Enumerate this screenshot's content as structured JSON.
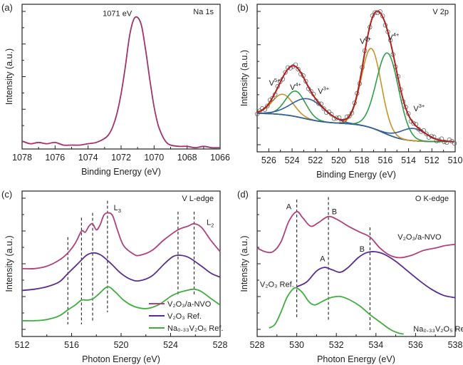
{
  "chart_data": [
    {
      "id": "a",
      "type": "line",
      "panel_label": "(a)",
      "title": "Na 1s",
      "xlabel": "Binding Energy (eV)",
      "ylabel": "Intensity (a.u.)",
      "xlim": [
        1078,
        1066
      ],
      "ylim": [
        0,
        1.1
      ],
      "xticks": [
        1078,
        1076,
        1074,
        1072,
        1070,
        1068,
        1066
      ],
      "annotations": [
        {
          "text": "1071 eV",
          "x": 1071,
          "y": 1.0
        }
      ],
      "series": [
        {
          "name": "Na 1s",
          "color": "#a0336e",
          "x": [
            1078,
            1077.5,
            1077,
            1076.5,
            1076,
            1075.5,
            1075,
            1074.5,
            1074,
            1073.5,
            1073,
            1072.75,
            1072.5,
            1072.25,
            1072,
            1071.75,
            1071.5,
            1071.25,
            1071,
            1070.75,
            1070.5,
            1070.25,
            1070,
            1069.75,
            1069.5,
            1069.25,
            1069,
            1068.5,
            1068,
            1067.5,
            1067,
            1066.5,
            1066
          ],
          "y": [
            0.06,
            0.04,
            0.05,
            0.04,
            0.05,
            0.03,
            0.03,
            0.03,
            0.04,
            0.05,
            0.08,
            0.11,
            0.17,
            0.27,
            0.42,
            0.62,
            0.85,
            0.98,
            1.0,
            0.93,
            0.74,
            0.52,
            0.32,
            0.18,
            0.1,
            0.05,
            0.03,
            0.02,
            0.02,
            0.01,
            0.02,
            0.01,
            0.01
          ]
        }
      ]
    },
    {
      "id": "b",
      "type": "line",
      "panel_label": "(b)",
      "title": "V 2p",
      "xlabel": "Binding Energy (eV)",
      "ylabel": "Intensity (a.u.)",
      "xlim": [
        527,
        510
      ],
      "ylim": [
        -0.1,
        1.35
      ],
      "xticks": [
        526,
        524,
        522,
        520,
        518,
        516,
        514,
        512,
        510
      ],
      "peak_labels": [
        {
          "text": "V",
          "sup": "5+",
          "x": 525.5,
          "y": 0.55,
          "color": "#c8922a"
        },
        {
          "text": "V",
          "sup": "4+",
          "x": 523.7,
          "y": 0.51,
          "color": "#2e9e4a"
        },
        {
          "text": "V",
          "sup": "3+",
          "x": 521.3,
          "y": 0.47,
          "color": "#2f5fa0"
        },
        {
          "text": "V",
          "sup": "5+",
          "x": 517.7,
          "y": 0.96,
          "color": "#c8922a"
        },
        {
          "text": "V",
          "sup": "4+",
          "x": 515.3,
          "y": 1.0,
          "color": "#2e9e4a"
        },
        {
          "text": "V",
          "sup": "3+",
          "x": 513.1,
          "y": 0.3,
          "color": "#2f5fa0"
        }
      ],
      "components": {
        "background": {
          "color": "#c8922a"
        },
        "peaks": [
          {
            "name": "V5+ 2p1/2",
            "center": 524.8,
            "height": 0.2,
            "width": 0.9,
            "color": "#c8922a"
          },
          {
            "name": "V4+ 2p1/2",
            "center": 523.7,
            "height": 0.25,
            "width": 0.85,
            "color": "#2e9e4a"
          },
          {
            "name": "V3+ 2p1/2",
            "center": 522.6,
            "height": 0.2,
            "width": 1.4,
            "color": "#2f5fa0"
          },
          {
            "name": "V5+ 2p3/2",
            "center": 517.2,
            "height": 0.78,
            "width": 0.85,
            "color": "#c8922a"
          },
          {
            "name": "V4+ 2p3/2",
            "center": 515.8,
            "height": 0.8,
            "width": 0.95,
            "color": "#2e9e4a"
          },
          {
            "name": "V3+ 2p3/2",
            "center": 513.6,
            "height": 0.12,
            "width": 1.1,
            "color": "#2f5fa0"
          }
        ],
        "envelope": {
          "color": "#b01e1e"
        },
        "data_points": {
          "color": "#555555"
        }
      }
    },
    {
      "id": "c",
      "type": "line",
      "panel_label": "(c)",
      "title": "V L-edge",
      "xlabel": "Photon Energy (eV)",
      "ylabel": "Intensity (a.u.)",
      "xlim": [
        512,
        528
      ],
      "ylim": [
        0,
        1.2
      ],
      "xticks": [
        512,
        516,
        520,
        524,
        528
      ],
      "edge_labels": [
        {
          "text": "L",
          "sub": "3",
          "x": 519.7,
          "y": 1.04
        },
        {
          "text": "L",
          "sub": "2",
          "x": 527.2,
          "y": 0.92
        }
      ],
      "dashed_lines": [
        515.7,
        516.8,
        517.7,
        518.9,
        524.6,
        525.9
      ],
      "legend": {
        "position": "bottom-right",
        "entries": [
          {
            "label": "V₂O₃/a-NVO",
            "color": "#b0407e"
          },
          {
            "label": "V₂O₃ Ref.",
            "color": "#5a2d91"
          },
          {
            "label": "Na₀.₃₃V₂O₅ Ref.",
            "color": "#3fae3f"
          }
        ]
      },
      "series": [
        {
          "name": "V2O3/a-NVO",
          "color": "#b0407e",
          "x": [
            512,
            513,
            514,
            515,
            515.7,
            516.3,
            516.8,
            517.1,
            517.4,
            517.7,
            518.0,
            518.3,
            518.6,
            518.9,
            519.3,
            519.7,
            520.2,
            521,
            521.5,
            522.5,
            523.5,
            524.6,
            525.4,
            525.9,
            526.5,
            527.2,
            528
          ],
          "y": [
            0.56,
            0.56,
            0.58,
            0.63,
            0.69,
            0.77,
            0.87,
            0.86,
            0.91,
            0.93,
            0.88,
            0.92,
            1.0,
            1.02,
            1.0,
            0.88,
            0.75,
            0.68,
            0.67,
            0.71,
            0.8,
            0.88,
            0.91,
            0.93,
            0.9,
            0.8,
            0.7
          ]
        },
        {
          "name": "V2O3 Ref.",
          "color": "#5a2d91",
          "x": [
            512,
            513,
            514,
            515,
            515.7,
            516.5,
            517.2,
            517.8,
            518.4,
            519.2,
            520,
            520.8,
            521.5,
            522.5,
            523.5,
            524.2,
            524.8,
            525.5,
            526.5,
            527.3,
            528
          ],
          "y": [
            0.38,
            0.39,
            0.41,
            0.45,
            0.52,
            0.6,
            0.67,
            0.69,
            0.67,
            0.6,
            0.52,
            0.47,
            0.46,
            0.5,
            0.6,
            0.66,
            0.67,
            0.65,
            0.58,
            0.52,
            0.49
          ]
        },
        {
          "name": "Na0.33V2O5 Ref.",
          "color": "#3fae3f",
          "x": [
            512,
            513,
            514,
            515,
            515.7,
            516.3,
            516.8,
            517.2,
            517.7,
            518.2,
            518.9,
            519.5,
            520.2,
            521,
            522,
            523,
            524,
            524.6,
            525.3,
            525.9,
            526.5,
            527.3,
            528
          ],
          "y": [
            0.13,
            0.13,
            0.14,
            0.17,
            0.22,
            0.26,
            0.3,
            0.3,
            0.31,
            0.35,
            0.41,
            0.37,
            0.3,
            0.25,
            0.23,
            0.26,
            0.33,
            0.36,
            0.38,
            0.39,
            0.37,
            0.31,
            0.26
          ]
        }
      ]
    },
    {
      "id": "d",
      "type": "line",
      "panel_label": "(d)",
      "title": "O K-edge",
      "xlabel": "Photon Energy (eV)",
      "ylabel": "Intensity (a.u.)",
      "xlim": [
        528,
        538
      ],
      "ylim": [
        0,
        1.2
      ],
      "xticks": [
        528,
        530,
        532,
        534,
        536,
        538
      ],
      "dashed_lines": [
        530.0,
        531.6,
        533.7
      ],
      "peak_labels": [
        {
          "text": "A",
          "x": 529.6,
          "y": 1.05
        },
        {
          "text": "B",
          "x": 531.9,
          "y": 1.01
        },
        {
          "text": "A",
          "x": 531.3,
          "y": 0.62
        },
        {
          "text": "B",
          "x": 533.3,
          "y": 0.7
        }
      ],
      "series_labels": [
        {
          "text": "V₂O₃/a-NVO",
          "x": 536.2,
          "y": 0.8,
          "color": "#b0407e"
        },
        {
          "text": "V₂O₃ Ref.",
          "x": 529.0,
          "y": 0.41,
          "color": "#5a2d91"
        },
        {
          "text": "Na₀.₃₃V₂O₅ Ref.",
          "x": 537.3,
          "y": 0.04,
          "color": "#3fae3f"
        }
      ],
      "series": [
        {
          "name": "V2O3/a-NVO",
          "color": "#b0407e",
          "x": [
            528,
            528.4,
            528.8,
            529.2,
            529.6,
            530.0,
            530.3,
            530.7,
            531.1,
            531.6,
            532.1,
            532.6,
            533.2,
            533.7,
            534.2,
            534.7,
            535.2,
            535.8,
            536.4,
            537,
            537.5,
            538
          ],
          "y": [
            0.73,
            0.7,
            0.7,
            0.78,
            0.95,
            1.03,
            0.98,
            0.91,
            0.94,
            0.99,
            0.96,
            0.91,
            0.86,
            0.82,
            0.73,
            0.67,
            0.65,
            0.67,
            0.71,
            0.73,
            0.75,
            0.76
          ]
        },
        {
          "name": "V2O3 Ref.",
          "color": "#5a2d91",
          "x": [
            530.0,
            530.5,
            531.0,
            531.4,
            531.8,
            532.2,
            532.6,
            533.1,
            533.5,
            533.9,
            534.4,
            535,
            535.6,
            536.2,
            536.8,
            537.4,
            538
          ],
          "y": [
            0.41,
            0.45,
            0.54,
            0.57,
            0.55,
            0.53,
            0.57,
            0.65,
            0.69,
            0.7,
            0.68,
            0.62,
            0.54,
            0.46,
            0.39,
            0.34,
            0.32
          ]
        },
        {
          "name": "Na0.33V2O5 Ref.",
          "color": "#3fae3f",
          "x": [
            528.6,
            528.9,
            529.2,
            529.5,
            529.8,
            530.0,
            530.3,
            530.6,
            530.9,
            531.3,
            531.7,
            532.2,
            532.7,
            533.2,
            533.7,
            534.2,
            534.7,
            535.1,
            535.4
          ],
          "y": [
            0.07,
            0.1,
            0.2,
            0.32,
            0.39,
            0.4,
            0.36,
            0.29,
            0.26,
            0.29,
            0.32,
            0.33,
            0.3,
            0.25,
            0.18,
            0.12,
            0.06,
            0.03,
            0.02
          ]
        }
      ]
    }
  ]
}
